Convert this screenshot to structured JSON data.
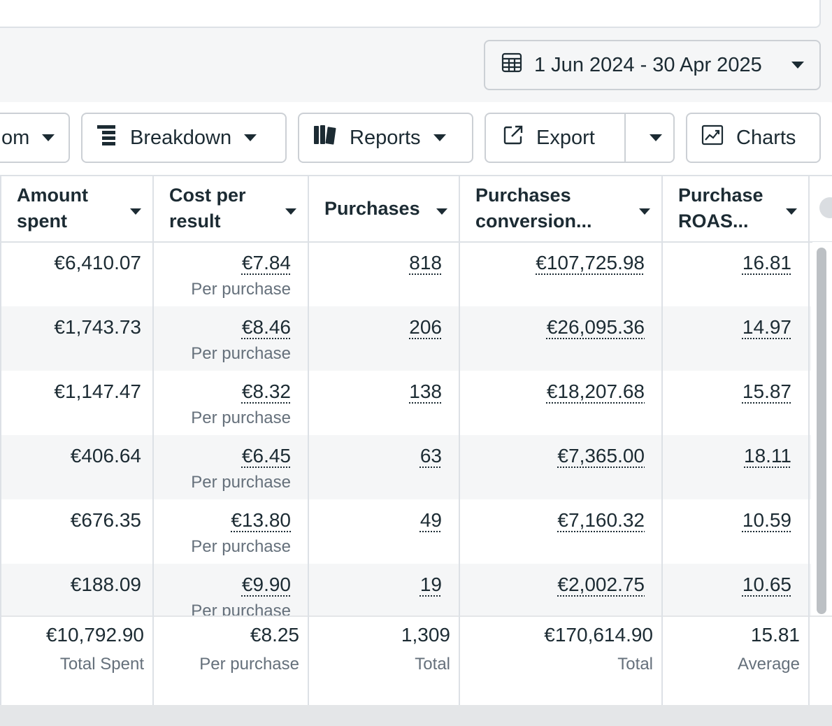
{
  "date_range": {
    "label": "1 Jun 2024 - 30 Apr 2025"
  },
  "toolbar": {
    "custom_partial": "om",
    "breakdown": "Breakdown",
    "reports": "Reports",
    "export": "Export",
    "charts": "Charts"
  },
  "columns": [
    {
      "label": "Amount spent"
    },
    {
      "label": "Cost per result"
    },
    {
      "label": "Purchases"
    },
    {
      "label": "Purchases conversion..."
    },
    {
      "label": "Purchase ROAS..."
    }
  ],
  "rows": [
    {
      "amount_spent": "€6,410.07",
      "cost_per_result": "€7.84",
      "cost_sub": "Per purchase",
      "purchases": "818",
      "conversion_value": "€107,725.98",
      "roas": "16.81"
    },
    {
      "amount_spent": "€1,743.73",
      "cost_per_result": "€8.46",
      "cost_sub": "Per purchase",
      "purchases": "206",
      "conversion_value": "€26,095.36",
      "roas": "14.97"
    },
    {
      "amount_spent": "€1,147.47",
      "cost_per_result": "€8.32",
      "cost_sub": "Per purchase",
      "purchases": "138",
      "conversion_value": "€18,207.68",
      "roas": "15.87"
    },
    {
      "amount_spent": "€406.64",
      "cost_per_result": "€6.45",
      "cost_sub": "Per purchase",
      "purchases": "63",
      "conversion_value": "€7,365.00",
      "roas": "18.11"
    },
    {
      "amount_spent": "€676.35",
      "cost_per_result": "€13.80",
      "cost_sub": "Per purchase",
      "purchases": "49",
      "conversion_value": "€7,160.32",
      "roas": "10.59"
    },
    {
      "amount_spent": "€188.09",
      "cost_per_result": "€9.90",
      "cost_sub": "Per purchase",
      "purchases": "19",
      "conversion_value": "€2,002.75",
      "roas": "10.65"
    }
  ],
  "totals": {
    "amount_spent": "€10,792.90",
    "amount_spent_label": "Total Spent",
    "cost_per_result": "€8.25",
    "cost_per_result_label": "Per purchase",
    "purchases": "1,309",
    "purchases_label": "Total",
    "conversion_value": "€170,614.90",
    "conversion_value_label": "Total",
    "roas": "15.81",
    "roas_label": "Average"
  }
}
